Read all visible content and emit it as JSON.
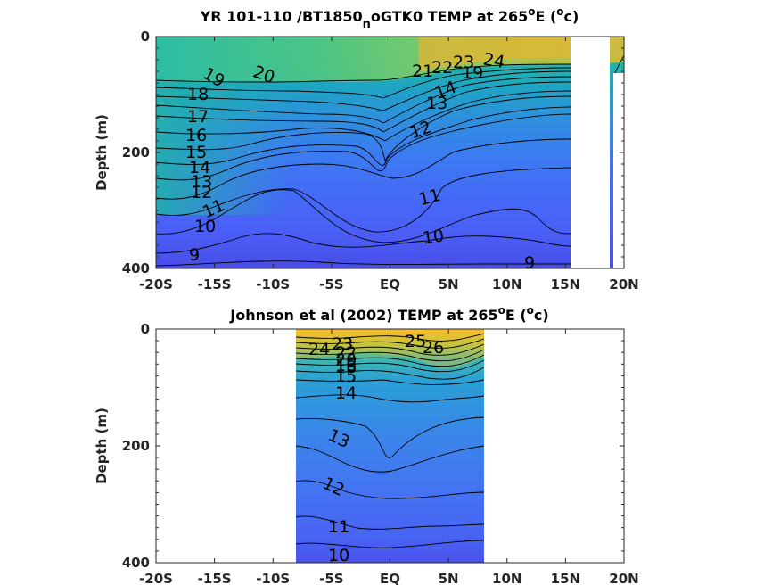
{
  "chart_data": [
    {
      "type": "heatmap",
      "title": "YR 101-110 /BT1850",
      "title_sub": "n",
      "title_rest": "oGTK0 TEMP at 265",
      "title_sup1": "o",
      "title_mid": "E (",
      "title_sup2": "o",
      "title_end": "c)",
      "ylabel": "Depth (m)",
      "xlim": [
        -20,
        20
      ],
      "ylim": [
        400,
        0
      ],
      "x_ticks": [
        -20,
        -15,
        -10,
        -5,
        0,
        5,
        10,
        15,
        20
      ],
      "x_tick_labels": [
        "-20S",
        "-15S",
        "-10S",
        "-5S",
        "EQ",
        "5N",
        "10N",
        "15N",
        "20N"
      ],
      "y_ticks": [
        0,
        200,
        400
      ],
      "y_tick_labels": [
        "0",
        "200",
        "400"
      ],
      "data_extent_x": [
        -20,
        20
      ],
      "colormap": "parula",
      "contour_labels": [
        "19",
        "20",
        "18",
        "17",
        "16",
        "15",
        "14",
        "13",
        "12",
        "11",
        "10",
        "9",
        "12",
        "11",
        "10",
        "9",
        "13",
        "14",
        "21",
        "22",
        "23",
        "24",
        "19"
      ]
    },
    {
      "type": "heatmap",
      "title": "Johnson et al (2002) TEMP at 265",
      "title_sup1": "o",
      "title_mid": "E (",
      "title_sup2": "o",
      "title_end": "c)",
      "ylabel": "Depth (m)",
      "xlim": [
        -20,
        20
      ],
      "ylim": [
        400,
        0
      ],
      "x_ticks": [
        -20,
        -15,
        -10,
        -5,
        0,
        5,
        10,
        15,
        20
      ],
      "x_tick_labels": [
        "-20S",
        "-15S",
        "-10S",
        "-5S",
        "EQ",
        "5N",
        "10N",
        "15N",
        "20N"
      ],
      "y_ticks": [
        0,
        200,
        400
      ],
      "y_tick_labels": [
        "0",
        "200",
        "400"
      ],
      "data_extent_x": [
        -8,
        8
      ],
      "colormap": "parula",
      "contour_labels": [
        "24",
        "23",
        "22",
        "20",
        "18",
        "16",
        "15",
        "14",
        "13",
        "12",
        "11",
        "10",
        "25",
        "26"
      ]
    }
  ]
}
